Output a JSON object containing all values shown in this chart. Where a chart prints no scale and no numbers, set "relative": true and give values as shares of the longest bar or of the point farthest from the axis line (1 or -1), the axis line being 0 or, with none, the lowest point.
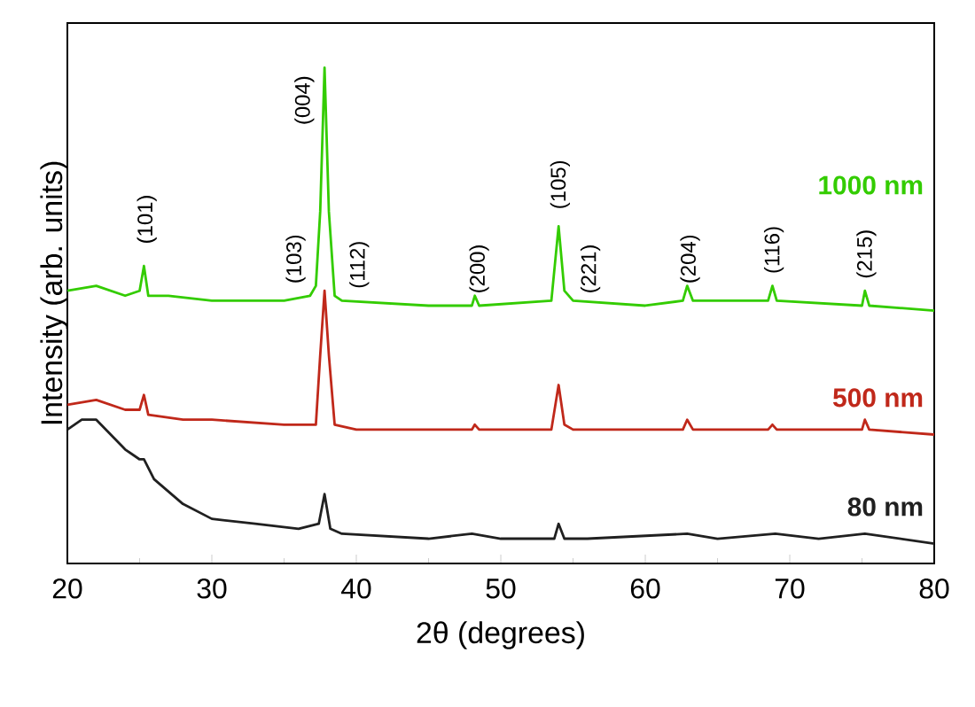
{
  "chart_data": {
    "type": "line",
    "xlabel": "2θ (degrees)",
    "ylabel": "Intensity (arb. units)",
    "relative": true,
    "xlim": [
      20,
      80
    ],
    "xticks": [
      20,
      30,
      40,
      50,
      60,
      70,
      80
    ],
    "marker": "none",
    "line_style": "solid",
    "series": [
      {
        "name": "1000 nm",
        "color": "#33cc00",
        "x": [
          20,
          22,
          24,
          25.0,
          25.3,
          25.6,
          27,
          30,
          35,
          36.8,
          37.2,
          37.5,
          37.8,
          38.1,
          38.5,
          39,
          45,
          48,
          48.2,
          48.5,
          53.5,
          54.0,
          54.4,
          55,
          60,
          62.6,
          62.9,
          63.3,
          68.5,
          68.8,
          69.1,
          75.0,
          75.2,
          75.5,
          80
        ],
        "values": [
          0.55,
          0.56,
          0.54,
          0.55,
          0.6,
          0.54,
          0.54,
          0.53,
          0.53,
          0.54,
          0.56,
          0.71,
          1.0,
          0.71,
          0.54,
          0.53,
          0.52,
          0.52,
          0.54,
          0.52,
          0.53,
          0.68,
          0.55,
          0.53,
          0.52,
          0.53,
          0.56,
          0.53,
          0.53,
          0.56,
          0.53,
          0.52,
          0.55,
          0.52,
          0.51
        ]
      },
      {
        "name": "500 nm",
        "color": "#c0281a",
        "x": [
          20,
          22,
          24,
          25.0,
          25.3,
          25.6,
          28,
          30,
          35,
          37.2,
          37.5,
          37.8,
          38.1,
          38.5,
          40,
          48,
          48.2,
          48.5,
          53.5,
          54.0,
          54.4,
          55,
          62.6,
          62.9,
          63.3,
          68.5,
          68.8,
          69.1,
          75.0,
          75.2,
          75.5,
          80
        ],
        "values": [
          0.32,
          0.33,
          0.31,
          0.31,
          0.34,
          0.3,
          0.29,
          0.29,
          0.28,
          0.28,
          0.42,
          0.55,
          0.42,
          0.28,
          0.27,
          0.27,
          0.28,
          0.27,
          0.27,
          0.36,
          0.28,
          0.27,
          0.27,
          0.29,
          0.27,
          0.27,
          0.28,
          0.27,
          0.27,
          0.29,
          0.27,
          0.26
        ]
      },
      {
        "name": "80 nm",
        "color": "#202020",
        "x": [
          20,
          21,
          22,
          23,
          24,
          25.0,
          25.3,
          26,
          28,
          30,
          33,
          36,
          37.4,
          37.8,
          38.2,
          39,
          45,
          48,
          50,
          53.7,
          54.0,
          54.4,
          56,
          62.9,
          65,
          69,
          72,
          75.2,
          80
        ],
        "values": [
          0.27,
          0.29,
          0.29,
          0.26,
          0.23,
          0.21,
          0.21,
          0.17,
          0.12,
          0.09,
          0.08,
          0.07,
          0.08,
          0.14,
          0.07,
          0.06,
          0.05,
          0.06,
          0.05,
          0.05,
          0.08,
          0.05,
          0.05,
          0.06,
          0.05,
          0.06,
          0.05,
          0.06,
          0.04
        ]
      }
    ],
    "annotations": [
      "(101)",
      "(103)",
      "(004)",
      "(112)",
      "(200)",
      "(105)",
      "(221)",
      "(204)",
      "(116)",
      "(215)"
    ]
  }
}
